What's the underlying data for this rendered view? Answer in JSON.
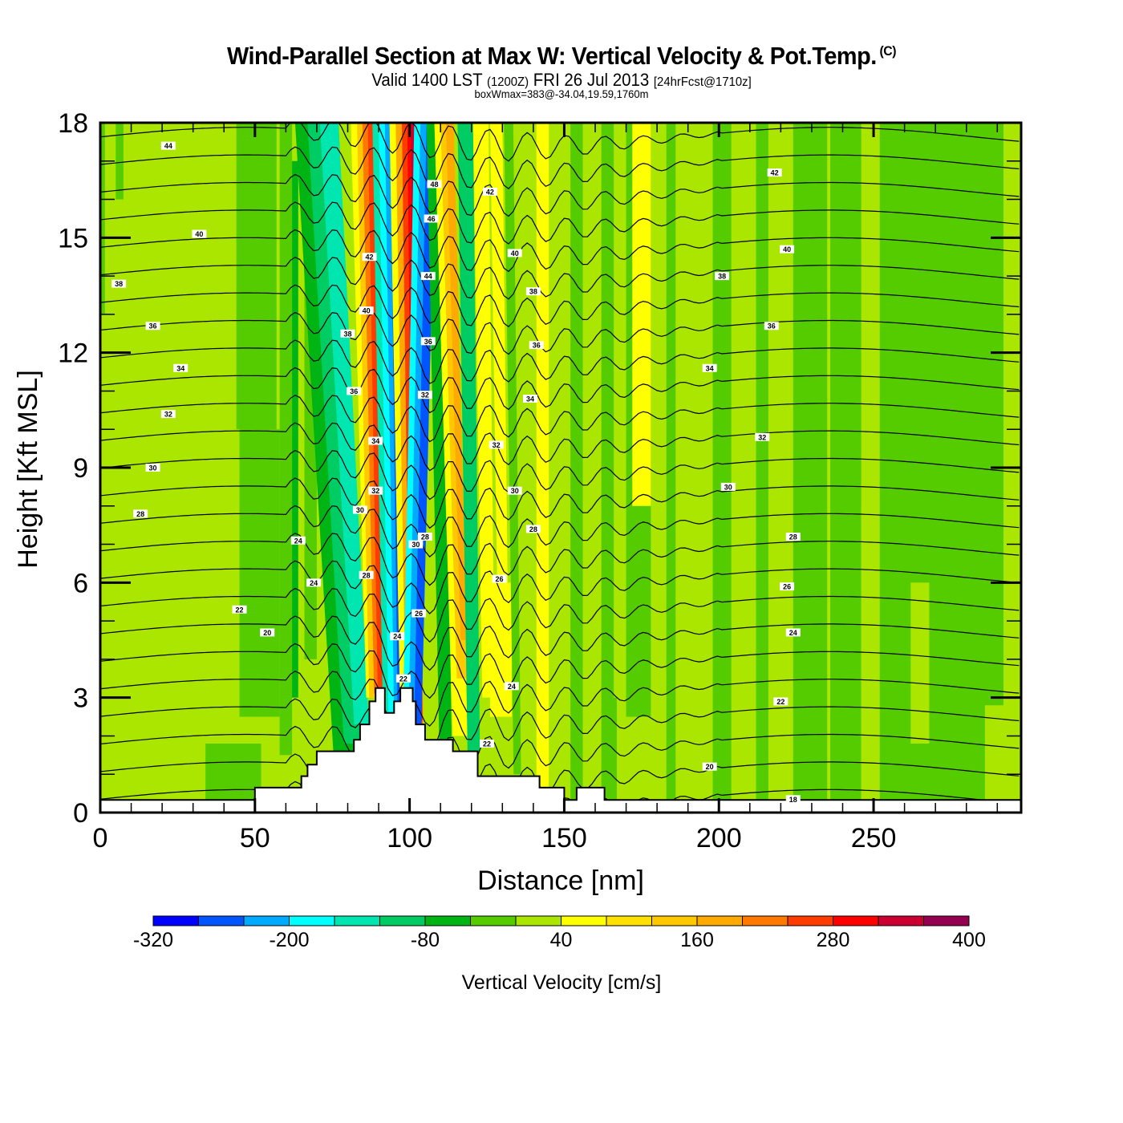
{
  "header": {
    "title": "Wind-Parallel Section at Max W: Vertical Velocity & Pot.Temp.",
    "copyright": "(C)",
    "subtitle_main_a": "Valid 1400 LST",
    "subtitle_small_a": "(1200Z)",
    "subtitle_main_b": "FRI 26 Jul 2013",
    "subtitle_small_b": "[24hrFcst@1710z]",
    "subtitle2": "boxWmax=383@-34.04,19.59,1760m"
  },
  "chart_data": {
    "type": "heatmap",
    "title": "Wind-Parallel Section at Max W: Vertical Velocity & Pot.Temp.",
    "xlabel": "Distance [nm]",
    "ylabel": "Height [Kft MSL]",
    "xlim": [
      0,
      297.7
    ],
    "ylim": [
      0,
      18
    ],
    "xticks": [
      "0",
      "50",
      "100",
      "150",
      "200",
      "250"
    ],
    "xtick_values": [
      0,
      50,
      100,
      150,
      200,
      250
    ],
    "yticks": [
      "0",
      "3",
      "6",
      "9",
      "12",
      "15",
      "18"
    ],
    "ytick_values": [
      0,
      3,
      6,
      9,
      12,
      15,
      18
    ],
    "colorbar": {
      "label": "Vertical Velocity [cm/s]",
      "levels": [
        -320,
        -280,
        -240,
        -200,
        -160,
        -120,
        -80,
        -40,
        0,
        40,
        80,
        120,
        160,
        200,
        240,
        280,
        320,
        360,
        400
      ],
      "tick_labels": [
        "-320",
        "-200",
        "-80",
        "40",
        "160",
        "280",
        "400"
      ],
      "tick_values": [
        -320,
        -200,
        -80,
        40,
        160,
        280,
        400
      ],
      "colors": [
        "#0000ff",
        "#0055ff",
        "#00aaff",
        "#00ffff",
        "#00e6b0",
        "#00cc64",
        "#00b414",
        "#55cc00",
        "#aae600",
        "#ffff00",
        "#ffe100",
        "#ffc800",
        "#ffaa00",
        "#ff7800",
        "#ff3c00",
        "#ff0000",
        "#cc0030",
        "#960050"
      ]
    },
    "max_w": {
      "value": 383,
      "unit": "cm/s",
      "lat": -34.04,
      "lon": 19.59,
      "height_m": 1760
    },
    "terrain_kft": {
      "x_nm": [
        0,
        50,
        50,
        62,
        65,
        67,
        70,
        80,
        82,
        84,
        87,
        89,
        91,
        92,
        95,
        97,
        98,
        101,
        102,
        105,
        114,
        122,
        122,
        142,
        150,
        150,
        154,
        155,
        161,
        163,
        297.7
      ],
      "h_kft": [
        0.33,
        0.33,
        0.65,
        0.65,
        0.95,
        1.25,
        1.6,
        1.6,
        1.9,
        2.3,
        2.9,
        3.25,
        3.25,
        2.6,
        2.9,
        3.25,
        3.25,
        2.9,
        2.3,
        1.9,
        1.6,
        1.6,
        0.95,
        0.65,
        0.33,
        0.33,
        0.65,
        0.65,
        0.65,
        0.33,
        0.33
      ]
    },
    "isentrope_labels": [
      {
        "text": "44",
        "x_nm": 22,
        "h_kft": 17.4
      },
      {
        "text": "40",
        "x_nm": 32,
        "h_kft": 15.1
      },
      {
        "text": "38",
        "x_nm": 6,
        "h_kft": 13.8
      },
      {
        "text": "36",
        "x_nm": 17,
        "h_kft": 12.7
      },
      {
        "text": "34",
        "x_nm": 26,
        "h_kft": 11.6
      },
      {
        "text": "32",
        "x_nm": 22,
        "h_kft": 10.4
      },
      {
        "text": "30",
        "x_nm": 17,
        "h_kft": 9.0
      },
      {
        "text": "28",
        "x_nm": 13,
        "h_kft": 7.8
      },
      {
        "text": "24",
        "x_nm": 64,
        "h_kft": 7.1
      },
      {
        "text": "24",
        "x_nm": 69,
        "h_kft": 6.0
      },
      {
        "text": "22",
        "x_nm": 45,
        "h_kft": 5.3
      },
      {
        "text": "20",
        "x_nm": 54,
        "h_kft": 4.7
      },
      {
        "text": "42",
        "x_nm": 218,
        "h_kft": 16.7
      },
      {
        "text": "40",
        "x_nm": 222,
        "h_kft": 14.7
      },
      {
        "text": "38",
        "x_nm": 201,
        "h_kft": 14.0
      },
      {
        "text": "36",
        "x_nm": 217,
        "h_kft": 12.7
      },
      {
        "text": "34",
        "x_nm": 197,
        "h_kft": 11.6
      },
      {
        "text": "32",
        "x_nm": 214,
        "h_kft": 9.8
      },
      {
        "text": "30",
        "x_nm": 203,
        "h_kft": 8.5
      },
      {
        "text": "28",
        "x_nm": 224,
        "h_kft": 7.2
      },
      {
        "text": "26",
        "x_nm": 222,
        "h_kft": 5.9
      },
      {
        "text": "24",
        "x_nm": 224,
        "h_kft": 4.7
      },
      {
        "text": "22",
        "x_nm": 220,
        "h_kft": 2.9
      },
      {
        "text": "20",
        "x_nm": 197,
        "h_kft": 1.2
      },
      {
        "text": "18",
        "x_nm": 224,
        "h_kft": 0.35
      },
      {
        "text": "24",
        "x_nm": 133,
        "h_kft": 3.3
      },
      {
        "text": "22",
        "x_nm": 125,
        "h_kft": 1.8
      },
      {
        "text": "26",
        "x_nm": 129,
        "h_kft": 6.1
      },
      {
        "text": "28",
        "x_nm": 140,
        "h_kft": 7.4
      },
      {
        "text": "30",
        "x_nm": 134,
        "h_kft": 8.4
      },
      {
        "text": "32",
        "x_nm": 128,
        "h_kft": 9.6
      },
      {
        "text": "34",
        "x_nm": 139,
        "h_kft": 10.8
      },
      {
        "text": "36",
        "x_nm": 141,
        "h_kft": 12.2
      },
      {
        "text": "38",
        "x_nm": 140,
        "h_kft": 13.6
      },
      {
        "text": "40",
        "x_nm": 134,
        "h_kft": 14.6
      },
      {
        "text": "42",
        "x_nm": 126,
        "h_kft": 16.2
      },
      {
        "text": "48",
        "x_nm": 108,
        "h_kft": 16.4
      },
      {
        "text": "46",
        "x_nm": 107,
        "h_kft": 15.5
      },
      {
        "text": "44",
        "x_nm": 106,
        "h_kft": 14.0
      },
      {
        "text": "36",
        "x_nm": 106,
        "h_kft": 12.3
      },
      {
        "text": "32",
        "x_nm": 105,
        "h_kft": 10.9
      },
      {
        "text": "30",
        "x_nm": 102,
        "h_kft": 7.0
      },
      {
        "text": "28",
        "x_nm": 105,
        "h_kft": 7.2
      },
      {
        "text": "26",
        "x_nm": 103,
        "h_kft": 5.2
      },
      {
        "text": "24",
        "x_nm": 96,
        "h_kft": 4.6
      },
      {
        "text": "22",
        "x_nm": 98,
        "h_kft": 3.5
      },
      {
        "text": "42",
        "x_nm": 87,
        "h_kft": 14.5
      },
      {
        "text": "40",
        "x_nm": 86,
        "h_kft": 13.1
      },
      {
        "text": "38",
        "x_nm": 80,
        "h_kft": 12.5
      },
      {
        "text": "36",
        "x_nm": 82,
        "h_kft": 11.0
      },
      {
        "text": "34",
        "x_nm": 89,
        "h_kft": 9.7
      },
      {
        "text": "32",
        "x_nm": 89,
        "h_kft": 8.4
      },
      {
        "text": "30",
        "x_nm": 84,
        "h_kft": 7.9
      },
      {
        "text": "28",
        "x_nm": 86,
        "h_kft": 6.2
      }
    ]
  }
}
